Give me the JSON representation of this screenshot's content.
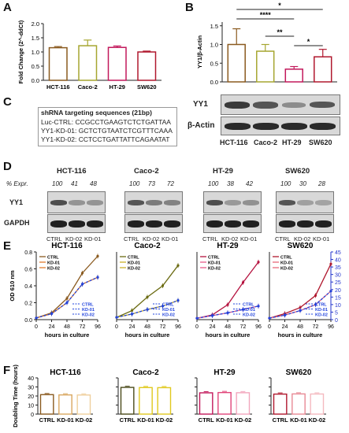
{
  "panels": {
    "A": "A",
    "B": "B",
    "C": "C",
    "D": "D",
    "E": "E",
    "F": "F"
  },
  "panel_a": {
    "ylabel": "Fold Change (2^-ddCt)",
    "categories": [
      "HCT-116",
      "Caco-2",
      "HT-29",
      "SW620"
    ],
    "ticks": [
      "0.0",
      "0.5",
      "1.0",
      "1.5",
      "2.0"
    ]
  },
  "panel_b": {
    "ylabel": "YY1/β-Actin",
    "categories": [
      "HCT-116",
      "Caco-2",
      "HT-29",
      "SW620"
    ],
    "ticks": [
      "0.0",
      "0.5",
      "1.0",
      "1.5"
    ],
    "sig": [
      "*",
      "****",
      "**",
      "*"
    ],
    "blot_labels": [
      "YY1",
      "β-Actin"
    ]
  },
  "panel_c": {
    "title": "shRNA targeting sequences (21bp)",
    "lines": [
      "Luc-CTRL: CCGCCTGAAGTCTCTGATTAA",
      "YY1-KD-01: GCTCTGTAATCTCGTTTCAAA",
      "YY1-KD-02: CCTCCTGATTATTCAGAATAT"
    ]
  },
  "panel_d": {
    "cell_lines": [
      "HCT-116",
      "Caco-2",
      "HT-29",
      "SW620"
    ],
    "expr_label": "% Expr.",
    "expr": [
      [
        "100",
        "41",
        "48"
      ],
      [
        "100",
        "73",
        "72"
      ],
      [
        "100",
        "38",
        "42"
      ],
      [
        "100",
        "30",
        "28"
      ]
    ],
    "row_labels": [
      "YY1",
      "GAPDH"
    ],
    "lanes": [
      "CTRL",
      "KD-02",
      "KD-01"
    ]
  },
  "panel_e": {
    "ylabel": "OD 610 nm",
    "ylabel_right": "Fold increase",
    "xlabel": "hours in culture",
    "xticks": [
      "0",
      "24",
      "48",
      "72",
      "96"
    ],
    "yticks_left": [
      "0.0",
      "0.2",
      "0.4",
      "0.6",
      "0.8"
    ],
    "yticks_right": [
      "0",
      "5",
      "10",
      "15",
      "20",
      "25",
      "30",
      "35",
      "40",
      "45"
    ],
    "legend_top": [
      "CTRL",
      "KD-01",
      "KD-02"
    ],
    "legend_bottom": [
      "CTRL",
      "KD-01",
      "KD-02"
    ]
  },
  "panel_f": {
    "ylabel": "Doubling Time (hours)",
    "yticks": [
      "0",
      "10",
      "20",
      "30",
      "40"
    ],
    "lanes": [
      "CTRL",
      "KD-01",
      "KD-02"
    ]
  },
  "chart_data": [
    {
      "type": "bar",
      "panel": "A",
      "categories": [
        "HCT-116",
        "Caco-2",
        "HT-29",
        "SW620"
      ],
      "values": [
        1.15,
        1.22,
        1.16,
        1.0
      ],
      "errors": [
        0.04,
        0.2,
        0.05,
        0.03
      ],
      "ylabel": "Fold Change (2^-ddCt)",
      "ylim": [
        0,
        2.0
      ],
      "colors": [
        "#8a5a1f",
        "#a6a630",
        "#c2185b",
        "#b0182e"
      ]
    },
    {
      "type": "bar",
      "panel": "B",
      "categories": [
        "HCT-116",
        "Caco-2",
        "HT-29",
        "SW620"
      ],
      "values": [
        1.0,
        0.82,
        0.34,
        0.67
      ],
      "errors": [
        0.42,
        0.18,
        0.07,
        0.2
      ],
      "ylabel": "YY1/β-Actin",
      "ylim": [
        0,
        1.6
      ],
      "colors": [
        "#8a5a1f",
        "#a6a630",
        "#c2185b",
        "#b0182e"
      ]
    },
    {
      "type": "line",
      "panel": "E",
      "title": "HCT-116",
      "x": [
        0,
        24,
        48,
        72,
        96
      ],
      "series": [
        {
          "name": "CTRL",
          "values": [
            0.02,
            0.08,
            0.25,
            0.55,
            0.75
          ]
        },
        {
          "name": "KD-01",
          "values": [
            0.02,
            0.07,
            0.2,
            0.42,
            0.5
          ]
        },
        {
          "name": "KD-02",
          "values": [
            0.02,
            0.07,
            0.2,
            0.42,
            0.5
          ]
        }
      ],
      "ylim": [
        0,
        0.8
      ]
    },
    {
      "type": "line",
      "panel": "E",
      "title": "Caco-2",
      "x": [
        0,
        24,
        48,
        72,
        96
      ],
      "series": [
        {
          "name": "CTRL",
          "values": [
            0.02,
            0.08,
            0.2,
            0.3,
            0.48
          ]
        },
        {
          "name": "KD-01",
          "values": [
            0.02,
            0.05,
            0.09,
            0.12,
            0.17
          ]
        },
        {
          "name": "KD-02",
          "values": [
            0.02,
            0.05,
            0.09,
            0.12,
            0.17
          ]
        }
      ],
      "ylim": [
        0,
        0.6
      ]
    },
    {
      "type": "line",
      "panel": "E",
      "title": "HT-29",
      "x": [
        0,
        24,
        48,
        72,
        96
      ],
      "series": [
        {
          "name": "CTRL",
          "values": [
            0.02,
            0.07,
            0.22,
            0.55,
            0.85
          ]
        },
        {
          "name": "KD-01",
          "values": [
            0.02,
            0.06,
            0.1,
            0.15,
            0.2
          ]
        },
        {
          "name": "KD-02",
          "values": [
            0.02,
            0.06,
            0.1,
            0.15,
            0.2
          ]
        }
      ],
      "ylim": [
        0,
        1.0
      ]
    },
    {
      "type": "line",
      "panel": "E",
      "title": "SW620",
      "x": [
        0,
        24,
        48,
        72,
        96
      ],
      "series": [
        {
          "name": "CTRL",
          "values": [
            1,
            4,
            8,
            16,
            37
          ]
        },
        {
          "name": "KD-01",
          "values": [
            1,
            3,
            6,
            10,
            19
          ]
        },
        {
          "name": "KD-02",
          "values": [
            1,
            3,
            6,
            10,
            19
          ]
        }
      ],
      "ylim": [
        0,
        45
      ]
    },
    {
      "type": "bar",
      "panel": "F",
      "title": "HCT-116",
      "categories": [
        "CTRL",
        "KD-01",
        "KD-02"
      ],
      "values": [
        21.5,
        21.2,
        21.1
      ],
      "ylim": [
        0,
        40
      ],
      "colors": [
        "#8a5a1f",
        "#d9a760",
        "#efcf9d"
      ]
    },
    {
      "type": "bar",
      "panel": "F",
      "title": "Caco-2",
      "categories": [
        "CTRL",
        "KD-01",
        "KD-02"
      ],
      "values": [
        29.5,
        29.3,
        29.2
      ],
      "ylim": [
        0,
        40
      ],
      "colors": [
        "#4a4a1a",
        "#e0c91e",
        "#e0c91e"
      ]
    },
    {
      "type": "bar",
      "panel": "F",
      "title": "HT-29",
      "categories": [
        "CTRL",
        "KD-01",
        "KD-02"
      ],
      "values": [
        23.5,
        23.8,
        23.6
      ],
      "ylim": [
        0,
        40
      ],
      "colors": [
        "#c2185b",
        "#e1457a",
        "#f2a6bd"
      ]
    },
    {
      "type": "bar",
      "panel": "F",
      "title": "SW620",
      "categories": [
        "CTRL",
        "KD-01",
        "KD-02"
      ],
      "values": [
        22.1,
        22.3,
        22.2
      ],
      "ylim": [
        0,
        40
      ],
      "colors": [
        "#b0182e",
        "#e88a95",
        "#f4b9bf"
      ]
    }
  ]
}
